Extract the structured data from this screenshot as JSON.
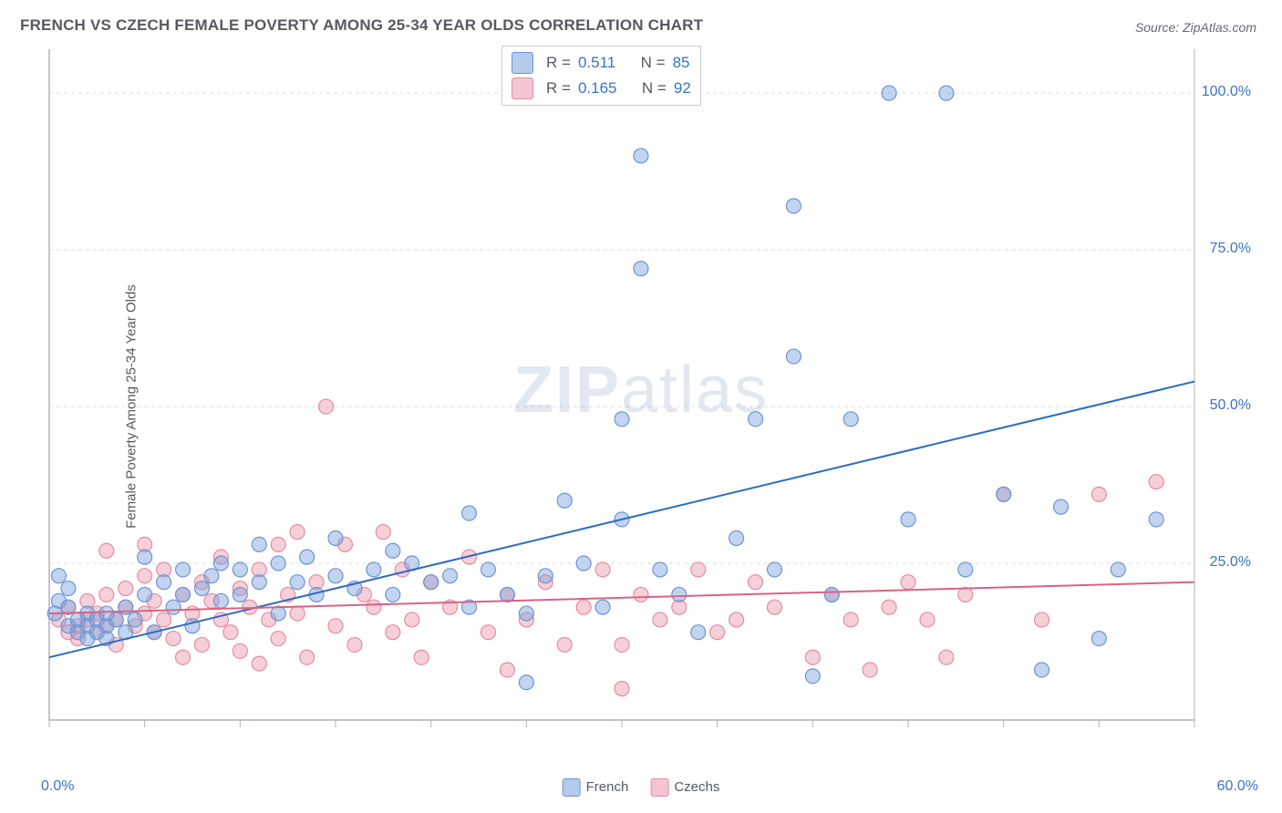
{
  "title": "FRENCH VS CZECH FEMALE POVERTY AMONG 25-34 YEAR OLDS CORRELATION CHART",
  "source": "Source: ZipAtlas.com",
  "ylabel": "Female Poverty Among 25-34 Year Olds",
  "watermark_bold": "ZIP",
  "watermark_rest": "atlas",
  "chart": {
    "type": "scatter",
    "xlim": [
      0,
      60
    ],
    "ylim": [
      0,
      107
    ],
    "x_ticks": [
      0,
      5,
      10,
      15,
      20,
      25,
      30,
      35,
      40,
      45,
      50,
      55,
      60
    ],
    "y_gridlines": [
      25,
      50,
      75,
      100
    ],
    "x_min_label": "0.0%",
    "x_max_label": "60.0%",
    "y_tick_labels": {
      "25": "25.0%",
      "50": "50.0%",
      "75": "75.0%",
      "100": "100.0%"
    },
    "background_color": "#ffffff",
    "grid_color": "#dddddd",
    "axis_color": "#aeb2b8",
    "tick_label_color": "#3973c6",
    "text_color": "#555a60",
    "marker_radius": 8,
    "marker_stroke_width": 1.2,
    "line_width": 2,
    "series": [
      {
        "name": "French",
        "fill": "rgba(120,160,220,0.45)",
        "stroke": "#6a96d6",
        "line_color": "#2e6bc0",
        "R": "0.511",
        "N": "85",
        "trend": {
          "x1": 0,
          "y1": 10,
          "x2": 60,
          "y2": 54
        },
        "points": [
          [
            0.5,
            23
          ],
          [
            0.5,
            19
          ],
          [
            1,
            18
          ],
          [
            1,
            21
          ],
          [
            1,
            15
          ],
          [
            1.5,
            16
          ],
          [
            1.5,
            14
          ],
          [
            2,
            17
          ],
          [
            2,
            15
          ],
          [
            2,
            13
          ],
          [
            2.5,
            14
          ],
          [
            2.5,
            16
          ],
          [
            3,
            15
          ],
          [
            3,
            17
          ],
          [
            3,
            13
          ],
          [
            3.5,
            16
          ],
          [
            4,
            14
          ],
          [
            4,
            18
          ],
          [
            4.5,
            16
          ],
          [
            5,
            26
          ],
          [
            5,
            20
          ],
          [
            5.5,
            14
          ],
          [
            6,
            22
          ],
          [
            6.5,
            18
          ],
          [
            7,
            20
          ],
          [
            7,
            24
          ],
          [
            7.5,
            15
          ],
          [
            8,
            21
          ],
          [
            8.5,
            23
          ],
          [
            9,
            19
          ],
          [
            9,
            25
          ],
          [
            10,
            24
          ],
          [
            10,
            20
          ],
          [
            11,
            28
          ],
          [
            11,
            22
          ],
          [
            12,
            25
          ],
          [
            12,
            17
          ],
          [
            13,
            22
          ],
          [
            13.5,
            26
          ],
          [
            14,
            20
          ],
          [
            15,
            23
          ],
          [
            15,
            29
          ],
          [
            16,
            21
          ],
          [
            17,
            24
          ],
          [
            18,
            20
          ],
          [
            18,
            27
          ],
          [
            19,
            25
          ],
          [
            20,
            22
          ],
          [
            21,
            23
          ],
          [
            22,
            18
          ],
          [
            22,
            33
          ],
          [
            23,
            24
          ],
          [
            24,
            20
          ],
          [
            25,
            6
          ],
          [
            25,
            17
          ],
          [
            26,
            23
          ],
          [
            27,
            35
          ],
          [
            28,
            25
          ],
          [
            29,
            18
          ],
          [
            30,
            32
          ],
          [
            30,
            48
          ],
          [
            31,
            72
          ],
          [
            31,
            90
          ],
          [
            32,
            24
          ],
          [
            33,
            20
          ],
          [
            34,
            14
          ],
          [
            36,
            29
          ],
          [
            37,
            48
          ],
          [
            38,
            24
          ],
          [
            39,
            58
          ],
          [
            39,
            82
          ],
          [
            40,
            7
          ],
          [
            41,
            20
          ],
          [
            42,
            48
          ],
          [
            44,
            100
          ],
          [
            45,
            32
          ],
          [
            47,
            100
          ],
          [
            48,
            24
          ],
          [
            50,
            36
          ],
          [
            52,
            8
          ],
          [
            53,
            34
          ],
          [
            55,
            13
          ],
          [
            56,
            24
          ],
          [
            58,
            32
          ],
          [
            0.3,
            17
          ]
        ]
      },
      {
        "name": "Czechs",
        "fill": "rgba(235,150,170,0.45)",
        "stroke": "#e78aa2",
        "line_color": "#d96384",
        "R": "0.165",
        "N": "92",
        "trend": {
          "x1": 0,
          "y1": 17,
          "x2": 60,
          "y2": 22
        },
        "points": [
          [
            0.5,
            16
          ],
          [
            1,
            14
          ],
          [
            1,
            18
          ],
          [
            1.5,
            15
          ],
          [
            1.5,
            13
          ],
          [
            2,
            16
          ],
          [
            2,
            19
          ],
          [
            2.5,
            14
          ],
          [
            2.5,
            17
          ],
          [
            3,
            15
          ],
          [
            3,
            20
          ],
          [
            3.5,
            16
          ],
          [
            3.5,
            12
          ],
          [
            4,
            18
          ],
          [
            4,
            21
          ],
          [
            4.5,
            15
          ],
          [
            5,
            17
          ],
          [
            5,
            23
          ],
          [
            5.5,
            14
          ],
          [
            5.5,
            19
          ],
          [
            6,
            16
          ],
          [
            6,
            24
          ],
          [
            6.5,
            13
          ],
          [
            7,
            20
          ],
          [
            7,
            10
          ],
          [
            7.5,
            17
          ],
          [
            8,
            22
          ],
          [
            8,
            12
          ],
          [
            8.5,
            19
          ],
          [
            9,
            16
          ],
          [
            9,
            26
          ],
          [
            9.5,
            14
          ],
          [
            10,
            21
          ],
          [
            10,
            11
          ],
          [
            10.5,
            18
          ],
          [
            11,
            24
          ],
          [
            11,
            9
          ],
          [
            11.5,
            16
          ],
          [
            12,
            28
          ],
          [
            12,
            13
          ],
          [
            12.5,
            20
          ],
          [
            13,
            17
          ],
          [
            13,
            30
          ],
          [
            13.5,
            10
          ],
          [
            14,
            22
          ],
          [
            14.5,
            50
          ],
          [
            15,
            15
          ],
          [
            15.5,
            28
          ],
          [
            16,
            12
          ],
          [
            16.5,
            20
          ],
          [
            17,
            18
          ],
          [
            17.5,
            30
          ],
          [
            18,
            14
          ],
          [
            18.5,
            24
          ],
          [
            19,
            16
          ],
          [
            19.5,
            10
          ],
          [
            20,
            22
          ],
          [
            21,
            18
          ],
          [
            22,
            26
          ],
          [
            23,
            14
          ],
          [
            24,
            20
          ],
          [
            24,
            8
          ],
          [
            25,
            16
          ],
          [
            26,
            22
          ],
          [
            27,
            12
          ],
          [
            28,
            18
          ],
          [
            29,
            24
          ],
          [
            30,
            5
          ],
          [
            30,
            12
          ],
          [
            31,
            20
          ],
          [
            32,
            16
          ],
          [
            33,
            18
          ],
          [
            34,
            24
          ],
          [
            35,
            14
          ],
          [
            36,
            16
          ],
          [
            37,
            22
          ],
          [
            38,
            18
          ],
          [
            40,
            10
          ],
          [
            41,
            20
          ],
          [
            42,
            16
          ],
          [
            43,
            8
          ],
          [
            44,
            18
          ],
          [
            45,
            22
          ],
          [
            46,
            16
          ],
          [
            47,
            10
          ],
          [
            48,
            20
          ],
          [
            50,
            36
          ],
          [
            52,
            16
          ],
          [
            55,
            36
          ],
          [
            58,
            38
          ],
          [
            3,
            27
          ],
          [
            5,
            28
          ]
        ]
      }
    ]
  },
  "legend_bottom": [
    {
      "swatch": "blue",
      "label": "French"
    },
    {
      "swatch": "pink",
      "label": "Czechs"
    }
  ],
  "legend_top": {
    "rows": [
      {
        "swatch": "blue",
        "R_label": "R  =",
        "R": "0.511",
        "N_label": "N  =",
        "N": "85"
      },
      {
        "swatch": "pink",
        "R_label": "R  =",
        "R": "0.165",
        "N_label": "N  =",
        "N": "92"
      }
    ]
  }
}
